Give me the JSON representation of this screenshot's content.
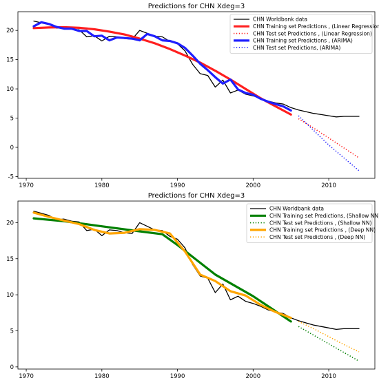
{
  "chart_data": [
    {
      "type": "line",
      "title": "Predictions for CHN  Xdeg=3",
      "xlim": [
        1968.9,
        2016.1
      ],
      "ylim": [
        -5.3,
        23.2
      ],
      "xticks": [
        1970,
        1980,
        1990,
        2000,
        2010
      ],
      "yticks": [
        -5,
        0,
        5,
        10,
        15,
        20
      ],
      "legend_position": "top-right",
      "series": [
        {
          "name": "CHN Worldbank data",
          "color": "#000000",
          "style": "solid",
          "width": "thin",
          "x": [
            1971,
            1972,
            1973,
            1974,
            1975,
            1976,
            1977,
            1978,
            1979,
            1980,
            1981,
            1982,
            1983,
            1984,
            1985,
            1986,
            1987,
            1988,
            1989,
            1990,
            1991,
            1992,
            1993,
            1994,
            1995,
            1996,
            1997,
            1998,
            1999,
            2000,
            2001,
            2002,
            2003,
            2004,
            2005,
            2006,
            2007,
            2008,
            2009,
            2010,
            2011,
            2012,
            2013,
            2014
          ],
          "y": [
            21.6,
            21.3,
            21.0,
            20.4,
            20.5,
            20.2,
            20.1,
            18.9,
            19.1,
            18.2,
            19.0,
            18.9,
            18.6,
            18.5,
            20.0,
            19.5,
            19.0,
            18.9,
            18.1,
            17.7,
            16.5,
            14.2,
            12.6,
            12.3,
            10.3,
            11.5,
            9.3,
            9.8,
            9.1,
            8.8,
            8.4,
            7.9,
            7.6,
            7.4,
            6.8,
            6.4,
            6.1,
            5.8,
            5.6,
            5.4,
            5.2,
            5.3,
            5.3,
            5.3
          ]
        },
        {
          "name": "CHN Training set Predictions , (Linear Regression)",
          "color": "#ff1f1f",
          "style": "solid",
          "width": "thick",
          "x": [
            1971,
            1973,
            1975,
            1977,
            1979,
            1981,
            1983,
            1985,
            1987,
            1989,
            1991,
            1993,
            1995,
            1997,
            1999,
            2001,
            2003,
            2005
          ],
          "y": [
            20.4,
            20.5,
            20.55,
            20.45,
            20.2,
            19.8,
            19.3,
            18.6,
            17.8,
            16.8,
            15.7,
            14.5,
            13.1,
            11.6,
            10.0,
            8.4,
            7.0,
            5.6
          ]
        },
        {
          "name": "CHN Test set Predictions , (Linear Regression)",
          "color": "#ff1f1f",
          "style": "dotted",
          "width": "thin",
          "x": [
            2006,
            2008,
            2010,
            2012,
            2014
          ],
          "y": [
            4.9,
            3.3,
            1.6,
            -0.1,
            -1.8
          ]
        },
        {
          "name": "CHN Training set Predictions , (ARIMA)",
          "color": "#1f1fff",
          "style": "solid",
          "width": "thick",
          "x": [
            1971,
            1972,
            1973,
            1974,
            1975,
            1976,
            1977,
            1978,
            1979,
            1980,
            1981,
            1982,
            1983,
            1984,
            1985,
            1986,
            1987,
            1988,
            1989,
            1990,
            1991,
            1992,
            1993,
            1994,
            1995,
            1996,
            1997,
            1998,
            1999,
            2000,
            2001,
            2002,
            2003,
            2004,
            2005
          ],
          "y": [
            20.7,
            21.4,
            21.1,
            20.6,
            20.3,
            20.3,
            19.9,
            19.9,
            19.0,
            19.1,
            18.3,
            18.8,
            18.7,
            18.6,
            18.3,
            19.4,
            19.0,
            18.3,
            18.2,
            17.8,
            17.0,
            15.7,
            14.3,
            13.2,
            12.0,
            10.9,
            11.6,
            9.9,
            9.3,
            9.0,
            8.3,
            7.8,
            7.4,
            7.0,
            6.3
          ]
        },
        {
          "name": "CHN Test set Predictions, (ARIMA)",
          "color": "#1f1fff",
          "style": "dotted",
          "width": "thin",
          "x": [
            2006,
            2008,
            2010,
            2012,
            2014
          ],
          "y": [
            5.4,
            2.9,
            0.4,
            -1.8,
            -4.0
          ]
        }
      ]
    },
    {
      "type": "line",
      "title": "Predictions for CHN  Xdeg=3",
      "xlim": [
        1968.9,
        2016.1
      ],
      "ylim": [
        -0.3,
        23.0
      ],
      "xticks": [
        1970,
        1980,
        1990,
        2000,
        2010
      ],
      "yticks": [
        0,
        5,
        10,
        15,
        20
      ],
      "legend_position": "top-right",
      "series": [
        {
          "name": "CHN Worldbank data",
          "color": "#000000",
          "style": "solid",
          "width": "thin",
          "x": [
            1971,
            1972,
            1973,
            1974,
            1975,
            1976,
            1977,
            1978,
            1979,
            1980,
            1981,
            1982,
            1983,
            1984,
            1985,
            1986,
            1987,
            1988,
            1989,
            1990,
            1991,
            1992,
            1993,
            1994,
            1995,
            1996,
            1997,
            1998,
            1999,
            2000,
            2001,
            2002,
            2003,
            2004,
            2005,
            2006,
            2007,
            2008,
            2009,
            2010,
            2011,
            2012,
            2013,
            2014
          ],
          "y": [
            21.6,
            21.3,
            21.0,
            20.4,
            20.5,
            20.2,
            20.1,
            18.9,
            19.1,
            18.2,
            19.0,
            18.9,
            18.6,
            18.5,
            20.0,
            19.5,
            19.0,
            18.9,
            18.1,
            17.7,
            16.5,
            14.2,
            12.6,
            12.3,
            10.3,
            11.5,
            9.3,
            9.8,
            9.1,
            8.8,
            8.4,
            7.9,
            7.6,
            7.4,
            6.8,
            6.4,
            6.1,
            5.8,
            5.6,
            5.4,
            5.2,
            5.3,
            5.3,
            5.3
          ]
        },
        {
          "name": "CHN Training set Predictions, (Shallow NN)",
          "color": "#008000",
          "style": "solid",
          "width": "thick",
          "x": [
            1971,
            1975,
            1980,
            1985,
            1988,
            1990,
            1995,
            2000,
            2005
          ],
          "y": [
            20.6,
            20.2,
            19.5,
            18.8,
            18.4,
            16.9,
            12.8,
            9.8,
            6.3
          ]
        },
        {
          "name": "CHN Test set Predictions , (Shallow NN)",
          "color": "#008000",
          "style": "dotted",
          "width": "thin",
          "x": [
            2006,
            2008,
            2010,
            2012,
            2014
          ],
          "y": [
            5.6,
            4.4,
            3.2,
            2.0,
            0.8
          ]
        },
        {
          "name": "CHN Training set Predictions , (Deep NN)",
          "color": "#ffa500",
          "style": "solid",
          "width": "thick",
          "x": [
            1971,
            1973,
            1975,
            1977,
            1979,
            1981,
            1983,
            1985,
            1987,
            1989,
            1991,
            1993,
            1995,
            1997,
            1999,
            2001,
            2003,
            2005
          ],
          "y": [
            21.4,
            20.8,
            20.3,
            19.8,
            19.0,
            18.5,
            18.6,
            19.1,
            19.0,
            18.5,
            16.0,
            12.8,
            11.9,
            10.5,
            9.9,
            8.6,
            7.6,
            6.8
          ]
        },
        {
          "name": "CHN Test set Predictions , (Deep NN)",
          "color": "#ffa500",
          "style": "dotted",
          "width": "thin",
          "x": [
            2006,
            2008,
            2010,
            2012,
            2014
          ],
          "y": [
            6.3,
            5.3,
            4.2,
            3.1,
            2.1
          ]
        }
      ]
    }
  ]
}
